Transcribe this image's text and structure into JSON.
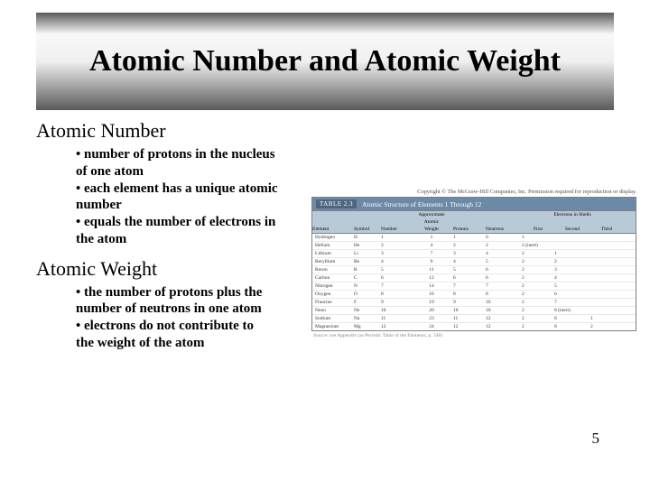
{
  "title": "Atomic Number and Atomic Weight",
  "section1": {
    "heading": "Atomic Number",
    "b1": "• number of protons in the nucleus of one atom",
    "b2": "• each element has a unique atomic number",
    "b3": "• equals the number of electrons in the atom"
  },
  "section2": {
    "heading": "Atomic Weight",
    "b1": "• the number of protons plus the number of neutrons in one atom",
    "b2": "• electrons do not contribute to the weight of the atom"
  },
  "figure": {
    "copyright": "Copyright © The McGraw-Hill Companies, Inc. Permission required for reproduction or display.",
    "table_label": "TABLE 2.3",
    "table_title": "Atomic Structure of Elements 1 Through 12",
    "columns": {
      "element": "Element",
      "symbol": "Symbol",
      "number": "Number",
      "aw1": "Approximate",
      "aw2": "Atomic",
      "aw3": "Weight",
      "protons": "Protons",
      "neutrons": "Neutrons",
      "shells": "Electrons in Shells",
      "first": "First",
      "second": "Second",
      "third": "Third"
    },
    "rows": [
      {
        "el": "Hydrogen",
        "sy": "H",
        "nu": "1",
        "aw": "1",
        "pr": "1",
        "ne": "0",
        "s1": "1",
        "s2": "",
        "s3": ""
      },
      {
        "el": "Helium",
        "sy": "He",
        "nu": "2",
        "aw": "4",
        "pr": "2",
        "ne": "2",
        "s1": "2 (inert)",
        "s2": "",
        "s3": ""
      },
      {
        "el": "Lithium",
        "sy": "Li",
        "nu": "3",
        "aw": "7",
        "pr": "3",
        "ne": "4",
        "s1": "2",
        "s2": "1",
        "s3": ""
      },
      {
        "el": "Beryllium",
        "sy": "Be",
        "nu": "4",
        "aw": "9",
        "pr": "4",
        "ne": "5",
        "s1": "2",
        "s2": "2",
        "s3": ""
      },
      {
        "el": "Boron",
        "sy": "B",
        "nu": "5",
        "aw": "11",
        "pr": "5",
        "ne": "6",
        "s1": "2",
        "s2": "3",
        "s3": ""
      },
      {
        "el": "Carbon",
        "sy": "C",
        "nu": "6",
        "aw": "12",
        "pr": "6",
        "ne": "6",
        "s1": "2",
        "s2": "4",
        "s3": ""
      },
      {
        "el": "Nitrogen",
        "sy": "N",
        "nu": "7",
        "aw": "14",
        "pr": "7",
        "ne": "7",
        "s1": "2",
        "s2": "5",
        "s3": ""
      },
      {
        "el": "Oxygen",
        "sy": "O",
        "nu": "8",
        "aw": "16",
        "pr": "8",
        "ne": "8",
        "s1": "2",
        "s2": "6",
        "s3": ""
      },
      {
        "el": "Fluorine",
        "sy": "F",
        "nu": "9",
        "aw": "19",
        "pr": "9",
        "ne": "10",
        "s1": "2",
        "s2": "7",
        "s3": ""
      },
      {
        "el": "Neon",
        "sy": "Ne",
        "nu": "10",
        "aw": "20",
        "pr": "10",
        "ne": "10",
        "s1": "2",
        "s2": "8 (inert)",
        "s3": ""
      },
      {
        "el": "Sodium",
        "sy": "Na",
        "nu": "11",
        "aw": "23",
        "pr": "11",
        "ne": "12",
        "s1": "2",
        "s2": "8",
        "s3": "1"
      },
      {
        "el": "Magnesium",
        "sy": "Mg",
        "nu": "12",
        "aw": "24",
        "pr": "12",
        "ne": "12",
        "s1": "2",
        "s2": "8",
        "s3": "2"
      }
    ],
    "footnote": "Source: see Appendix (as Periodic Table of the Elements, p. 548)"
  },
  "page_number": "5"
}
